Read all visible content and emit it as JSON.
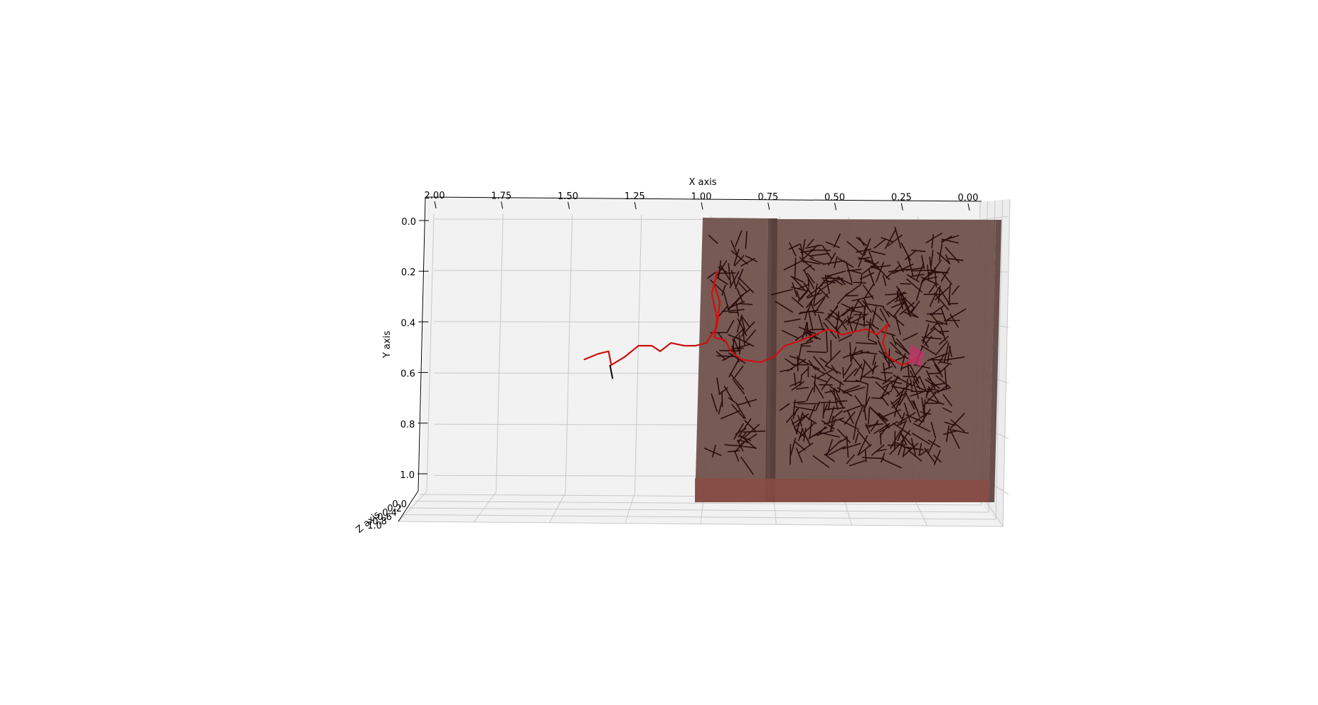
{
  "chart_data": {
    "type": "3d-line",
    "title": "",
    "xlabel": "X axis",
    "ylabel": "Y axis",
    "zlabel": "Z axis",
    "xlim": [
      0.0,
      2.0
    ],
    "ylim": [
      0.0,
      1.0
    ],
    "zlim": [
      0.0,
      1.0
    ],
    "x_ticks": [
      "2.00",
      "1.75",
      "1.50",
      "1.25",
      "1.00",
      "0.75",
      "0.50",
      "0.25",
      "0.00"
    ],
    "y_ticks": [
      "0.0",
      "0.2",
      "0.4",
      "0.6",
      "0.8",
      "1.0"
    ],
    "z_ticks": [
      "0.0",
      "0.2",
      "0.4",
      "0.6",
      "0.8",
      "1.0"
    ],
    "grid": true,
    "colors": {
      "pane": "#f2f2f2",
      "grid": "#c8c8c8",
      "volume": "#6e4d48",
      "volume_bottom": "#8a4b45",
      "network": "#2a0c0c",
      "path": "#cc1111",
      "highlight": "#c0336a"
    },
    "path": {
      "x": [
        1.42,
        1.37,
        1.33,
        1.32,
        1.27,
        1.22,
        1.17,
        1.14,
        1.1,
        1.05,
        1.01,
        0.97,
        0.95,
        0.93,
        0.92,
        0.94,
        0.93,
        0.95,
        0.93,
        0.94,
        0.9,
        0.88,
        0.84,
        0.77,
        0.72,
        0.68,
        0.62,
        0.57,
        0.52,
        0.47,
        0.43,
        0.38,
        0.34,
        0.32,
        0.3,
        0.32,
        0.3,
        0.25,
        0.22,
        0.19
      ],
      "y": [
        0.51,
        0.49,
        0.48,
        0.53,
        0.5,
        0.46,
        0.46,
        0.48,
        0.45,
        0.46,
        0.46,
        0.45,
        0.42,
        0.39,
        0.3,
        0.24,
        0.19,
        0.27,
        0.36,
        0.43,
        0.44,
        0.48,
        0.51,
        0.52,
        0.5,
        0.46,
        0.44,
        0.42,
        0.4,
        0.42,
        0.41,
        0.4,
        0.42,
        0.4,
        0.38,
        0.45,
        0.5,
        0.53,
        0.52,
        0.5
      ],
      "z": [
        0.5,
        0.5,
        0.5,
        0.5,
        0.5,
        0.5,
        0.5,
        0.5,
        0.5,
        0.5,
        0.5,
        0.5,
        0.5,
        0.5,
        0.5,
        0.5,
        0.5,
        0.5,
        0.5,
        0.5,
        0.5,
        0.5,
        0.5,
        0.5,
        0.5,
        0.5,
        0.5,
        0.5,
        0.5,
        0.5,
        0.5,
        0.5,
        0.5,
        0.5,
        0.5,
        0.5,
        0.5,
        0.5,
        0.5,
        0.5
      ]
    },
    "highlight_point": {
      "x": 0.2,
      "y": 0.5,
      "z": 0.5
    },
    "stub_segment": {
      "x": [
        1.325,
        1.315
      ],
      "y": [
        0.53,
        0.58
      ],
      "z": [
        0.5,
        0.5
      ]
    },
    "volumes": [
      {
        "x": [
          0.0,
          0.79
        ],
        "y": [
          0.0,
          1.0
        ],
        "z": [
          0.0,
          1.0
        ]
      },
      {
        "x": [
          0.8,
          1.0
        ],
        "y": [
          0.0,
          1.0
        ],
        "z": [
          0.0,
          1.0
        ]
      }
    ]
  }
}
